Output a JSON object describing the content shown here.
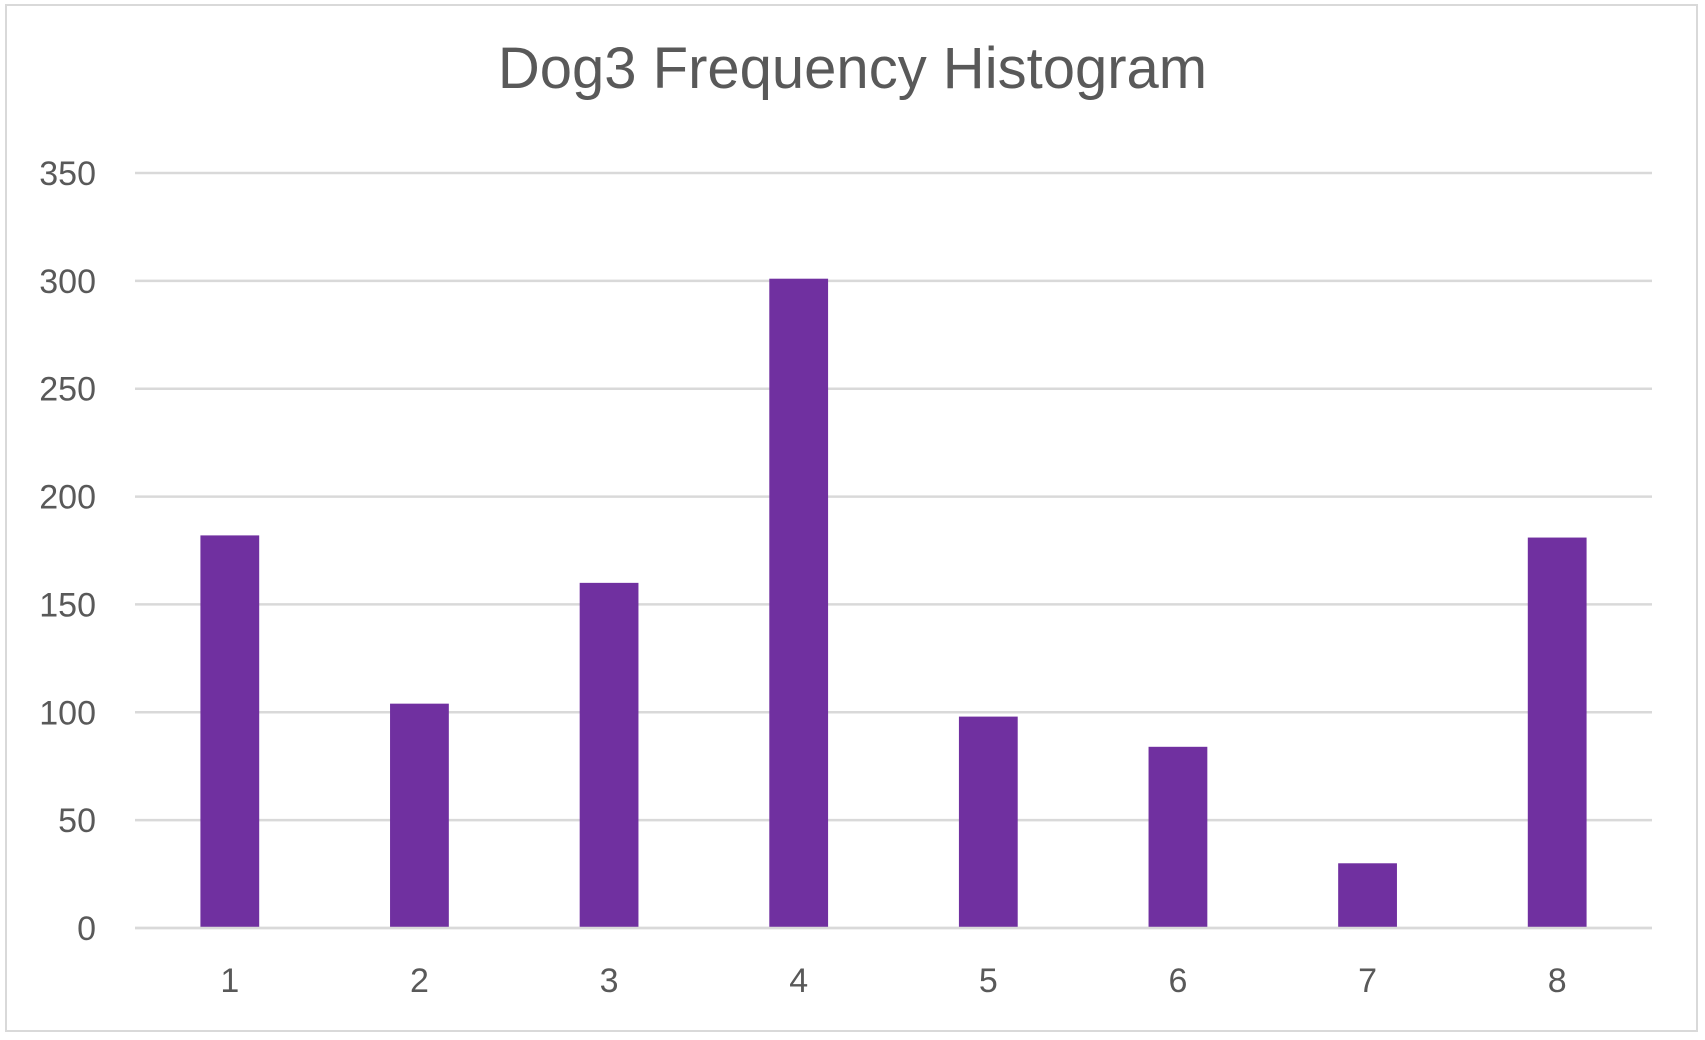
{
  "chart_data": {
    "type": "bar",
    "title": "Dog3 Frequency Histogram",
    "xlabel": "",
    "ylabel": "",
    "categories": [
      "1",
      "2",
      "3",
      "4",
      "5",
      "6",
      "7",
      "8"
    ],
    "values": [
      182,
      104,
      160,
      301,
      98,
      84,
      30,
      181
    ],
    "ylim": [
      0,
      350
    ],
    "yticks": [
      0,
      50,
      100,
      150,
      200,
      250,
      300,
      350
    ],
    "grid": true,
    "legend": "none",
    "bar_color": "#7030a0",
    "grid_color": "#d9d9d9",
    "text_color": "#595959"
  }
}
